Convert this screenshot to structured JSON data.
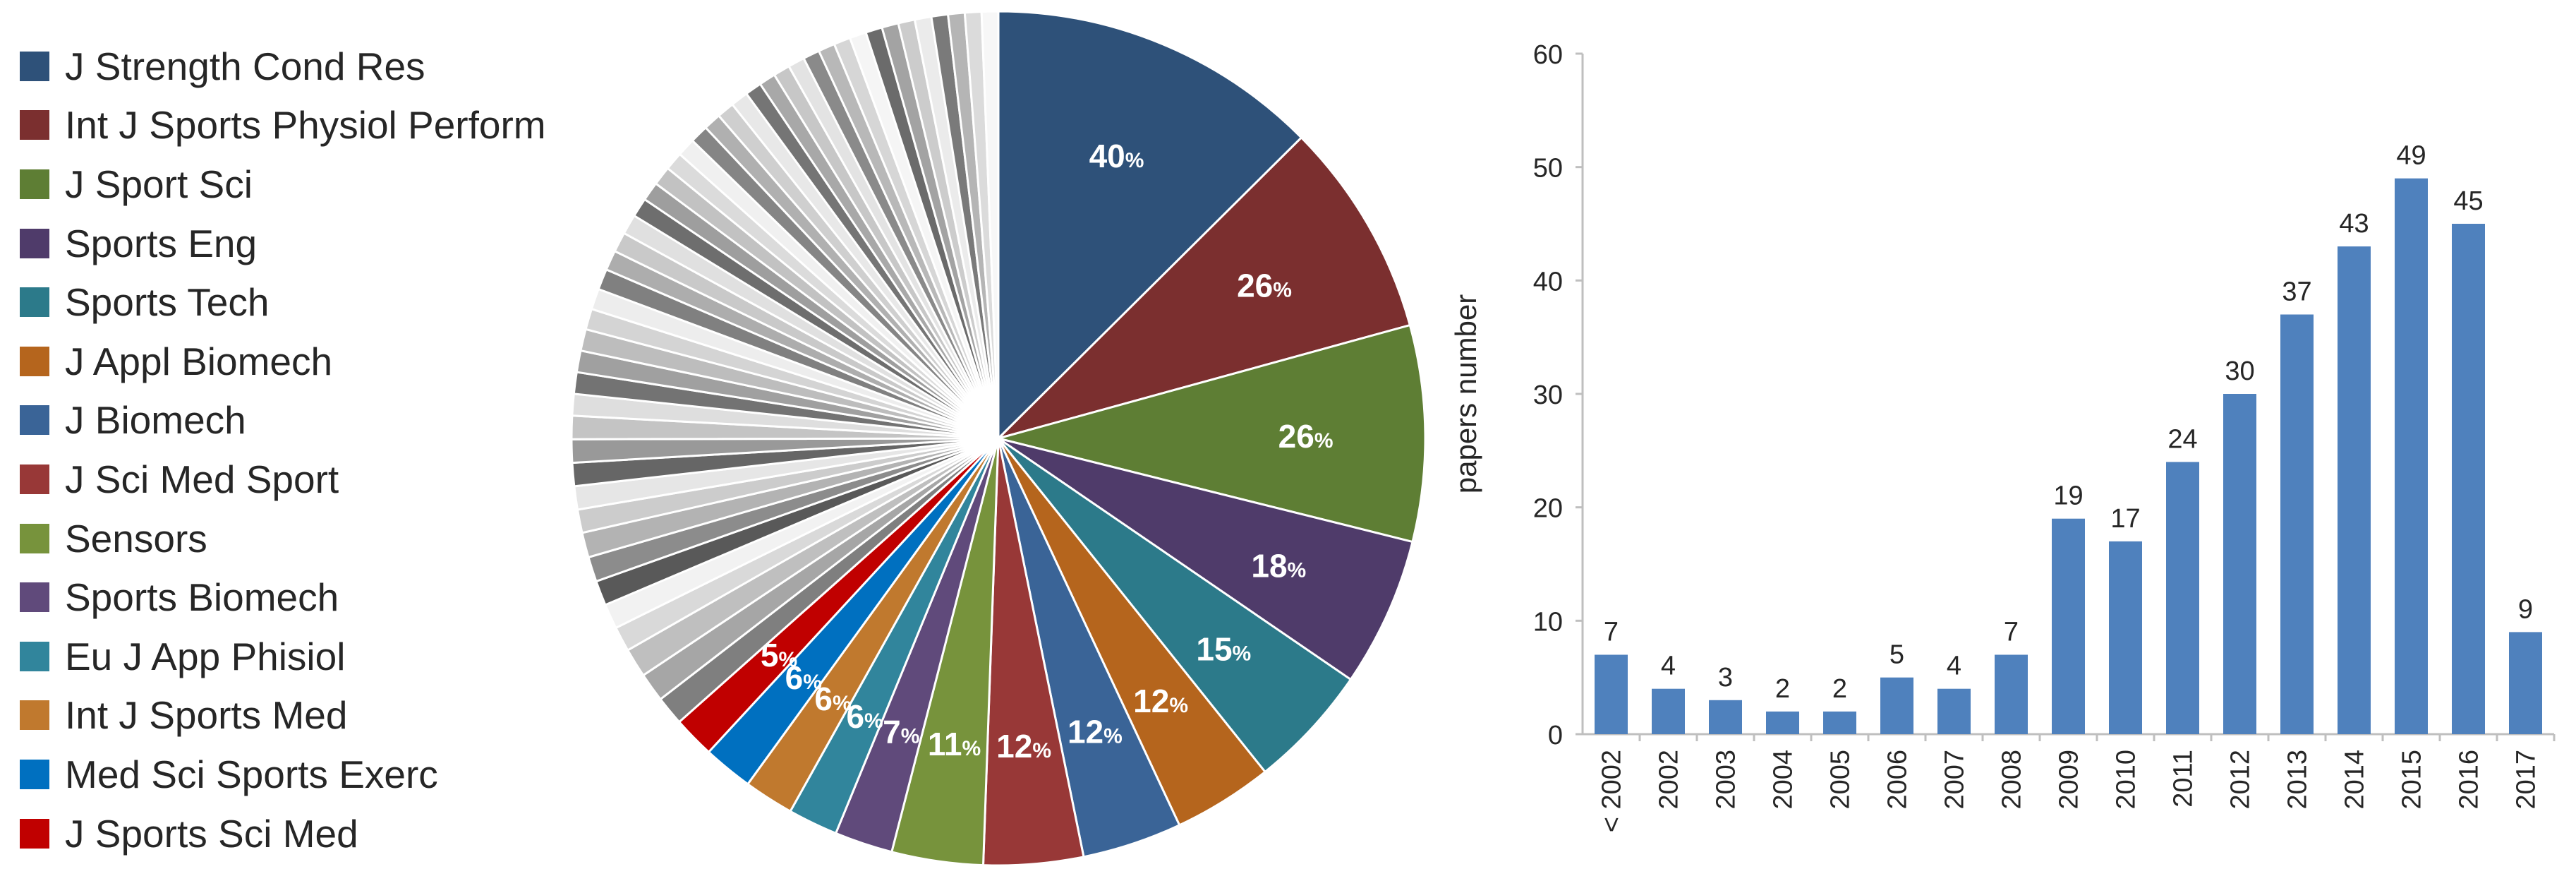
{
  "chart_data": [
    {
      "type": "pie",
      "legend_position": "left",
      "legend": [
        {
          "label": "J Strength Cond Res",
          "color": "#2E5179"
        },
        {
          "label": "Int J Sports Physiol Perform",
          "color": "#7B2F2F"
        },
        {
          "label": "J Sport Sci",
          "color": "#5E7E34"
        },
        {
          "label": "Sports Eng",
          "color": "#4F3B6A"
        },
        {
          "label": "Sports Tech",
          "color": "#2C7A8A"
        },
        {
          "label": "J Appl Biomech",
          "color": "#B5651D"
        },
        {
          "label": "J Biomech",
          "color": "#3A6497"
        },
        {
          "label": "J Sci Med Sport",
          "color": "#983837"
        },
        {
          "label": "Sensors",
          "color": "#77933C"
        },
        {
          "label": "Sports Biomech",
          "color": "#604A7B"
        },
        {
          "label": "Eu J App Phisiol",
          "color": "#31859C"
        },
        {
          "label": "Int J Sports Med",
          "color": "#C0792E"
        },
        {
          "label": "Med Sci Sports Exerc",
          "color": "#0070C0"
        },
        {
          "label": "J Sports Sci Med",
          "color": "#C00000"
        }
      ],
      "slices": [
        {
          "label": "J Strength Cond Res",
          "value": 40,
          "display": "40",
          "unit": "%",
          "color": "#2E5179"
        },
        {
          "label": "Int J Sports Physiol Perform",
          "value": 26,
          "display": "26",
          "unit": "%",
          "color": "#7B2F2F"
        },
        {
          "label": "J Sport Sci",
          "value": 26,
          "display": "26",
          "unit": "%",
          "color": "#5E7E34"
        },
        {
          "label": "Sports Eng",
          "value": 18,
          "display": "18",
          "unit": "%",
          "color": "#4F3B6A"
        },
        {
          "label": "Sports Tech",
          "value": 15,
          "display": "15",
          "unit": "%",
          "color": "#2C7A8A"
        },
        {
          "label": "J Appl Biomech",
          "value": 12,
          "display": "12",
          "unit": "%",
          "color": "#B5651D"
        },
        {
          "label": "J Biomech",
          "value": 12,
          "display": "12",
          "unit": "%",
          "color": "#3A6497"
        },
        {
          "label": "J Sci Med Sport",
          "value": 12,
          "display": "12",
          "unit": "%",
          "color": "#983837"
        },
        {
          "label": "Sensors",
          "value": 11,
          "display": "11",
          "unit": "%",
          "color": "#77933C"
        },
        {
          "label": "Sports Biomech",
          "value": 7,
          "display": "7",
          "unit": "%",
          "color": "#604A7B"
        },
        {
          "label": "Eu J App Phisiol",
          "value": 6,
          "display": "6",
          "unit": "%",
          "color": "#31859C"
        },
        {
          "label": "Int J Sports Med",
          "value": 6,
          "display": "6",
          "unit": "%",
          "color": "#C0792E"
        },
        {
          "label": "Med Sci Sports Exerc",
          "value": 6,
          "display": "6",
          "unit": "%",
          "color": "#0070C0"
        },
        {
          "label": "J Sports Sci Med",
          "value": 5,
          "display": "5",
          "unit": "%",
          "color": "#C00000"
        }
      ],
      "other_slices": [
        {
          "value": 3.5,
          "color": "#7F7F7F"
        },
        {
          "value": 3.5,
          "color": "#A6A6A6"
        },
        {
          "value": 3.5,
          "color": "#BFBFBF"
        },
        {
          "value": 3.0,
          "color": "#D9D9D9"
        },
        {
          "value": 3.0,
          "color": "#F2F2F2"
        },
        {
          "value": 3.0,
          "color": "#595959"
        },
        {
          "value": 3.0,
          "color": "#8C8C8C"
        },
        {
          "value": 3.0,
          "color": "#B3B3B3"
        },
        {
          "value": 2.8,
          "color": "#CCCCCC"
        },
        {
          "value": 2.8,
          "color": "#E6E6E6"
        },
        {
          "value": 2.8,
          "color": "#666666"
        },
        {
          "value": 2.8,
          "color": "#999999"
        },
        {
          "value": 2.8,
          "color": "#C4C4C4"
        },
        {
          "value": 2.6,
          "color": "#DEDEDE"
        },
        {
          "value": 2.6,
          "color": "#737373"
        },
        {
          "value": 2.6,
          "color": "#A0A0A0"
        },
        {
          "value": 2.6,
          "color": "#BDBDBD"
        },
        {
          "value": 2.5,
          "color": "#D4D4D4"
        },
        {
          "value": 2.5,
          "color": "#EDEDED"
        },
        {
          "value": 2.5,
          "color": "#808080"
        },
        {
          "value": 2.4,
          "color": "#ADADAD"
        },
        {
          "value": 2.4,
          "color": "#C9C9C9"
        },
        {
          "value": 2.4,
          "color": "#E0E0E0"
        },
        {
          "value": 2.3,
          "color": "#6E6E6E"
        },
        {
          "value": 2.3,
          "color": "#9E9E9E"
        },
        {
          "value": 2.3,
          "color": "#C2C2C2"
        },
        {
          "value": 2.2,
          "color": "#DBDBDB"
        },
        {
          "value": 2.2,
          "color": "#F0F0F0"
        },
        {
          "value": 2.2,
          "color": "#858585"
        },
        {
          "value": 2.1,
          "color": "#B0B0B0"
        },
        {
          "value": 2.1,
          "color": "#CFCFCF"
        },
        {
          "value": 2.1,
          "color": "#E8E8E8"
        },
        {
          "value": 2.0,
          "color": "#757575"
        },
        {
          "value": 2.0,
          "color": "#A8A8A8"
        },
        {
          "value": 2.0,
          "color": "#C7C7C7"
        },
        {
          "value": 2.0,
          "color": "#E3E3E3"
        },
        {
          "value": 2.0,
          "color": "#8A8A8A"
        },
        {
          "value": 2.0,
          "color": "#B8B8B8"
        },
        {
          "value": 2.0,
          "color": "#D6D6D6"
        },
        {
          "value": 2.0,
          "color": "#F5F5F5"
        },
        {
          "value": 2.0,
          "color": "#6B6B6B"
        },
        {
          "value": 2.0,
          "color": "#A3A3A3"
        },
        {
          "value": 2.0,
          "color": "#CCCCCC"
        },
        {
          "value": 2.0,
          "color": "#EBEBEB"
        },
        {
          "value": 2.0,
          "color": "#7A7A7A"
        },
        {
          "value": 2.0,
          "color": "#B5B5B5"
        },
        {
          "value": 2.0,
          "color": "#DBDBDB"
        },
        {
          "value": 2.0,
          "color": "#F7F7F7"
        }
      ]
    },
    {
      "type": "bar",
      "ylabel": "papers number",
      "ylim": [
        0,
        60
      ],
      "yticks": [
        0,
        10,
        20,
        30,
        40,
        50,
        60
      ],
      "grid": false,
      "bar_color": "#4F81BD",
      "categories": [
        "< 2002",
        "2002",
        "2003",
        "2004",
        "2005",
        "2006",
        "2007",
        "2008",
        "2009",
        "2010",
        "2011",
        "2012",
        "2013",
        "2014",
        "2015",
        "2016",
        "2017"
      ],
      "values": [
        7,
        4,
        3,
        2,
        2,
        5,
        4,
        7,
        19,
        17,
        24,
        30,
        37,
        43,
        49,
        45,
        9
      ],
      "data_labels": [
        "7",
        "4",
        "3",
        "2",
        "2",
        "5",
        "4",
        "7",
        "19",
        "17",
        "24",
        "30",
        "37",
        "43",
        "49",
        "45",
        "9"
      ]
    }
  ]
}
